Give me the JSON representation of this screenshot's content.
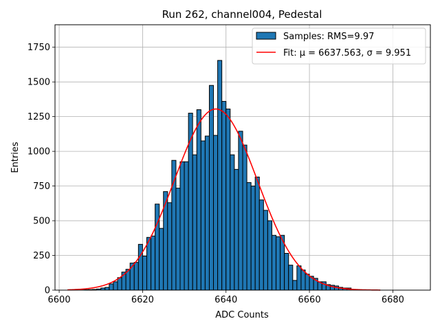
{
  "chart_data": {
    "type": "bar",
    "title": "Run 262, channel004, Pedestal",
    "xlabel": "ADC Counts",
    "ylabel": "Entries",
    "xlim": [
      6599,
      6689
    ],
    "ylim": [
      0,
      1912
    ],
    "xticks": [
      6600,
      6620,
      6640,
      6660,
      6680
    ],
    "yticks": [
      0,
      250,
      500,
      750,
      1000,
      1250,
      1500,
      1750
    ],
    "grid": true,
    "bin_width": 1,
    "bin_left_edges": [
      6605,
      6606,
      6607,
      6608,
      6609,
      6610,
      6611,
      6612,
      6613,
      6614,
      6615,
      6616,
      6617,
      6618,
      6619,
      6620,
      6621,
      6622,
      6623,
      6624,
      6625,
      6626,
      6627,
      6628,
      6629,
      6630,
      6631,
      6632,
      6633,
      6634,
      6635,
      6636,
      6637,
      6638,
      6639,
      6640,
      6641,
      6642,
      6643,
      6644,
      6645,
      6646,
      6647,
      6648,
      6649,
      6650,
      6651,
      6652,
      6653,
      6654,
      6655,
      6656,
      6657,
      6658,
      6659,
      6660,
      6661,
      6662,
      6663,
      6664,
      6665,
      6666,
      6667,
      6668,
      6669,
      6670
    ],
    "counts": [
      2,
      3,
      4,
      5,
      8,
      15,
      20,
      45,
      60,
      90,
      130,
      150,
      195,
      200,
      330,
      245,
      380,
      390,
      620,
      445,
      710,
      630,
      935,
      735,
      925,
      925,
      1275,
      975,
      1300,
      1075,
      1110,
      1475,
      1115,
      1655,
      1360,
      1305,
      975,
      870,
      1145,
      1045,
      775,
      750,
      815,
      650,
      575,
      500,
      395,
      385,
      395,
      265,
      180,
      70,
      175,
      145,
      115,
      100,
      85,
      60,
      60,
      40,
      35,
      30,
      20,
      15,
      15,
      3
    ],
    "fit": {
      "mu": 6637.563,
      "sigma": 9.951,
      "amplitude": 1305,
      "x_range": [
        6602,
        6677
      ]
    },
    "legend": {
      "position": "upper-right",
      "hist_label": "Samples: RMS=9.97",
      "fit_label": "Fit: μ = 6637.563, σ = 9.951"
    },
    "colors": {
      "bars": "#1f77b4",
      "bar_edge": "#000000",
      "fit": "#ff0000",
      "grid": "#b0b0b0"
    }
  }
}
